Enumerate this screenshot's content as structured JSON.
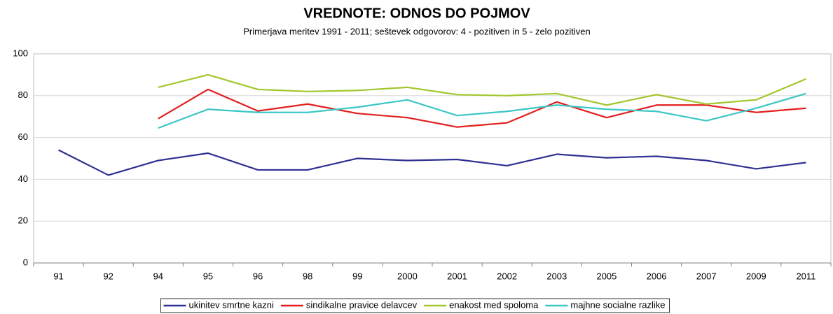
{
  "chart_data": {
    "type": "line",
    "title": "VREDNOTE: ODNOS DO POJMOV",
    "subtitle": "Primerjava meritev 1991 - 2011; seštevek odgovorov: 4 - pozitiven in 5 - zelo pozitiven",
    "categories": [
      "91",
      "92",
      "94",
      "95",
      "96",
      "98",
      "99",
      "2000",
      "2001",
      "2002",
      "2003",
      "2005",
      "2006",
      "2007",
      "2009",
      "2011"
    ],
    "series": [
      {
        "name": "ukinitev smrtne kazni",
        "color": "#2e3192",
        "values": [
          54,
          42,
          49,
          52.5,
          44.5,
          44.5,
          50,
          49,
          49.5,
          46.5,
          52,
          50.3,
          51,
          49,
          45,
          48
        ]
      },
      {
        "name": "sindikalne pravice delavcev",
        "color": "#e41e1e",
        "values": [
          null,
          null,
          69,
          83,
          72.7,
          76,
          71.5,
          69.5,
          65,
          67,
          77,
          69.5,
          75.5,
          75.5,
          72,
          74
        ]
      },
      {
        "name": "enakost med spoloma",
        "color": "#a3c72d",
        "values": [
          null,
          null,
          84,
          90,
          83,
          82,
          82.5,
          84,
          80.5,
          80,
          81,
          75.5,
          80.5,
          76,
          78,
          88
        ]
      },
      {
        "name": "majhne socialne razlike",
        "color": "#3cc6c6",
        "values": [
          null,
          null,
          64.5,
          73.5,
          72,
          72,
          74.5,
          78,
          70.5,
          72.5,
          75.5,
          73.5,
          72.5,
          68,
          74,
          81
        ]
      }
    ],
    "ylim": [
      0,
      100
    ],
    "yticks": [
      0,
      20,
      40,
      60,
      80,
      100
    ],
    "grid": true,
    "legend": "bottom"
  }
}
